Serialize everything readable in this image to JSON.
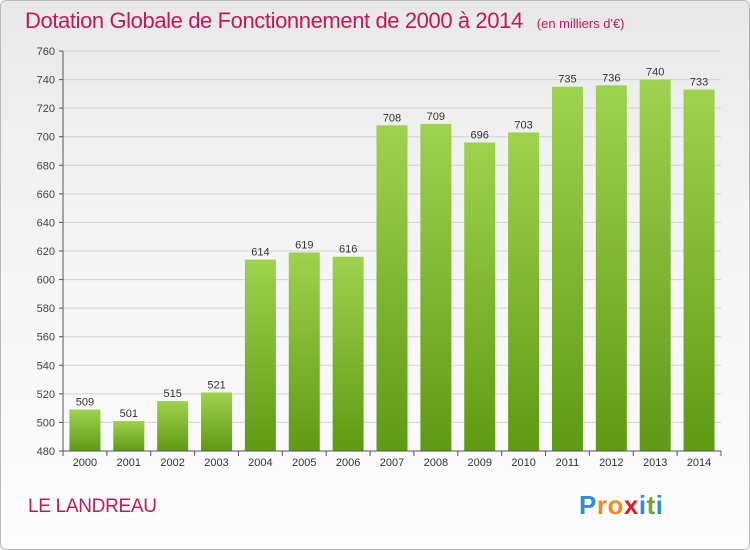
{
  "header": {
    "title": "Dotation Globale de Fonctionnement de 2000 à 2014",
    "unit": "(en milliers d'€)"
  },
  "footer": {
    "commune": "LE LANDREAU"
  },
  "logo": {
    "letters": [
      "P",
      "r",
      "o",
      "x",
      "i",
      "t",
      "i"
    ],
    "colors": [
      "#2c8fd6",
      "#f08a1c",
      "#f08a1c",
      "#d6202a",
      "#2c8fd6",
      "#6fa62c",
      "#2c8fd6"
    ]
  },
  "colors": {
    "bar_top": "#9fd24e",
    "bar_bottom": "#5f9a14",
    "grid": "#d3d3d3",
    "axis": "#555555"
  },
  "chart_data": {
    "type": "bar",
    "title": "Dotation Globale de Fonctionnement de 2000 à 2014",
    "xlabel": "",
    "ylabel": "",
    "ylim": [
      480,
      760
    ],
    "yticks": [
      480,
      500,
      520,
      540,
      560,
      580,
      600,
      620,
      640,
      660,
      680,
      700,
      720,
      740,
      760
    ],
    "categories": [
      "2000",
      "2001",
      "2002",
      "2003",
      "2004",
      "2005",
      "2006",
      "2007",
      "2008",
      "2009",
      "2010",
      "2011",
      "2012",
      "2013",
      "2014"
    ],
    "values": [
      509,
      501,
      515,
      521,
      614,
      619,
      616,
      708,
      709,
      696,
      703,
      735,
      736,
      740,
      733
    ]
  }
}
